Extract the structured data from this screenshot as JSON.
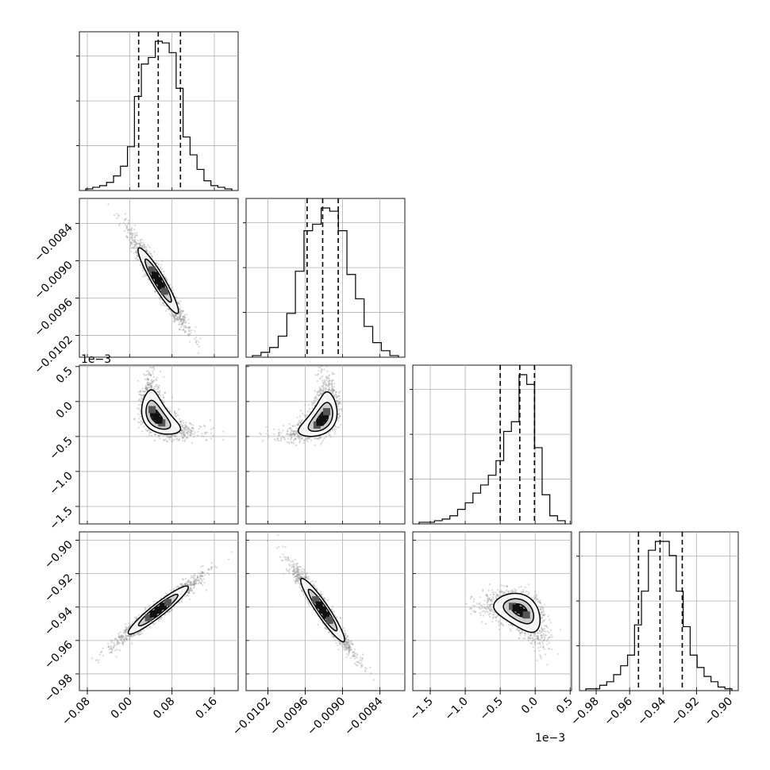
{
  "chart_data": {
    "type": "corner",
    "parameters": [
      {
        "index": 0,
        "range": [
          -0.095,
          0.205
        ],
        "ticks": [
          -0.08,
          0.0,
          0.08,
          0.16
        ],
        "tick_labels": [
          "−0.08",
          "0.00",
          "0.08",
          "0.16"
        ],
        "offset_label": "",
        "quantiles": [
          0.017,
          0.054,
          0.096
        ],
        "histogram": [
          1,
          2,
          3,
          5,
          9,
          15,
          27,
          58,
          78,
          82,
          92,
          91,
          85,
          63,
          33,
          22,
          13,
          6,
          3,
          2,
          1
        ]
      },
      {
        "index": 1,
        "range": [
          -0.01055,
          -0.008
        ],
        "ticks": [
          -0.0102,
          -0.0096,
          -0.009,
          -0.0084
        ],
        "tick_labels": [
          "−0.0102",
          "−0.0096",
          "−0.0090",
          "−0.0084"
        ],
        "offset_label": "",
        "quantiles": [
          -0.00957,
          -0.00932,
          -0.00907
        ],
        "histogram": [
          1,
          3,
          6,
          13,
          27,
          53,
          78,
          82,
          92,
          90,
          78,
          51,
          36,
          19,
          9,
          4,
          1
        ]
      },
      {
        "index": 2,
        "range": [
          -1.75,
          0.52
        ],
        "ticks": [
          -1.5,
          -1.0,
          -0.5,
          0.0,
          0.5
        ],
        "tick_labels": [
          "−1.5",
          "−1.0",
          "−0.5",
          "0.0",
          "0.5"
        ],
        "offset_label": "1e−3",
        "quantiles": [
          -0.5,
          -0.22,
          -0.01
        ],
        "histogram": [
          1,
          1,
          2,
          3,
          5,
          9,
          13,
          19,
          24,
          30,
          39,
          57,
          63,
          92,
          86,
          47,
          18,
          5,
          2
        ]
      },
      {
        "index": 3,
        "range": [
          -0.99,
          -0.895
        ],
        "ticks": [
          -0.98,
          -0.96,
          -0.94,
          -0.92,
          -0.9
        ],
        "tick_labels": [
          "−0.98",
          "−0.96",
          "−0.94",
          "−0.92",
          "−0.90"
        ],
        "offset_label": "",
        "quantiles": [
          -0.9547,
          -0.9418,
          -0.9285
        ],
        "histogram": [
          1,
          1,
          3,
          5,
          9,
          14,
          20,
          37,
          56,
          79,
          84,
          84,
          76,
          56,
          36,
          20,
          13,
          8,
          5,
          2,
          1
        ]
      }
    ],
    "y_tick_labels": {
      "row1": {
        "ticks": [
          -0.0084,
          -0.009,
          -0.0096,
          -0.0102
        ],
        "labels": [
          "−0.0084",
          "−0.0090",
          "−0.0096",
          "−0.0102"
        ]
      },
      "row2": {
        "ticks": [
          0.5,
          0.0,
          -0.5,
          -1.0,
          -1.5
        ],
        "labels": [
          "0.5",
          "0.0",
          "−0.5",
          "−1.0",
          "−1.5"
        ],
        "offset_label": "1e−3"
      },
      "row3": {
        "ticks": [
          -0.9,
          -0.92,
          -0.94,
          -0.96,
          -0.98
        ],
        "labels": [
          "−0.90",
          "−0.92",
          "−0.94",
          "−0.96",
          "−0.98"
        ]
      }
    },
    "pairs": [
      {
        "row": 1,
        "col": 0,
        "center": [
          0.054,
          -0.00932
        ],
        "slope": -0.0143,
        "shape": "linear"
      },
      {
        "row": 2,
        "col": 0,
        "center": [
          0.05,
          -0.22
        ],
        "shape": "banana"
      },
      {
        "row": 2,
        "col": 1,
        "center": [
          -0.00932,
          -0.25
        ],
        "shape": "banana-mirror"
      },
      {
        "row": 3,
        "col": 0,
        "center": [
          0.054,
          -0.9418
        ],
        "slope": 0.25,
        "shape": "linear"
      },
      {
        "row": 3,
        "col": 1,
        "center": [
          -0.00932,
          -0.9418
        ],
        "slope": -55,
        "shape": "linear"
      },
      {
        "row": 3,
        "col": 2,
        "center": [
          -0.22,
          -0.9418
        ],
        "shape": "curved"
      }
    ],
    "grid": true,
    "colors": {
      "hist_line": "#000000",
      "quantile_line": "#000000",
      "scatter": "#8c8c8c",
      "contour": "#000000",
      "grid": "#b0b0b0"
    }
  }
}
